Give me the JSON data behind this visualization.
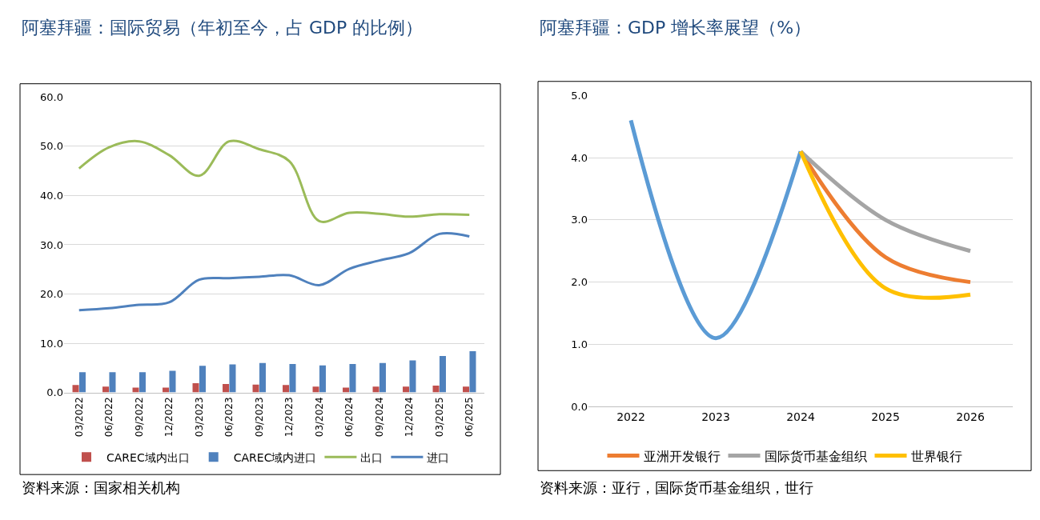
{
  "chart_data": [
    {
      "type": "bar",
      "title": "阿塞拜疆：国际贸易（年初至今，占 GDP 的比例）",
      "categories": [
        "03/2022",
        "06/2022",
        "09/2022",
        "12/2022",
        "03/2023",
        "06/2023",
        "09/2023",
        "12/2023",
        "03/2024",
        "06/2024",
        "09/2024",
        "12/2024",
        "03/2025",
        "06/2025"
      ],
      "series": [
        {
          "name": "CAREC域内出口",
          "color": "#c0504d",
          "values": [
            1.5,
            1.2,
            1.0,
            1.0,
            1.9,
            1.7,
            1.6,
            1.5,
            1.2,
            1.0,
            1.2,
            1.2,
            1.4,
            1.2
          ]
        },
        {
          "name": "CAREC域内进口",
          "color": "#4f81bd",
          "values": [
            4.1,
            4.1,
            4.1,
            4.4,
            5.4,
            5.7,
            6.0,
            5.8,
            5.5,
            5.8,
            6.0,
            6.5,
            7.4,
            8.4
          ]
        },
        {
          "name": "出口",
          "type": "line",
          "color": "#9bbb59",
          "values": [
            45.5,
            49.8,
            51.0,
            48.2,
            44.0,
            51.0,
            49.4,
            47.0,
            34.8,
            36.5,
            36.3,
            35.7,
            36.2,
            36.1
          ]
        },
        {
          "name": "进口",
          "type": "line",
          "color": "#4f81bd",
          "values": [
            16.7,
            17.1,
            17.8,
            18.3,
            22.9,
            23.2,
            23.5,
            23.8,
            21.8,
            25.1,
            26.8,
            28.3,
            32.2,
            31.7
          ]
        }
      ],
      "ylim": [
        0,
        60
      ],
      "yticks": [
        {
          "value": 0,
          "label": "0.0"
        },
        {
          "value": 10,
          "label": "10.0"
        },
        {
          "value": 20,
          "label": "20.0"
        },
        {
          "value": 30,
          "label": "30.0"
        },
        {
          "value": 40,
          "label": "40.0"
        },
        {
          "value": 50,
          "label": "50.0"
        },
        {
          "value": 60,
          "label": "60.0"
        }
      ],
      "grid": "y",
      "legend": "bottom",
      "annotations": [
        "资料来源：国家相关机构"
      ]
    },
    {
      "type": "line",
      "title": "阿塞拜疆：GDP 增长率展望（%）",
      "categories": [
        "2022",
        "2023",
        "2024",
        "2025",
        "2026"
      ],
      "series": [
        {
          "color": "#5b9bd5",
          "values": [
            4.6,
            1.1,
            4.1,
            null,
            null
          ]
        },
        {
          "name": "亚洲开发银行",
          "color": "#ed7d31",
          "values": [
            null,
            null,
            4.1,
            2.4,
            2.0
          ]
        },
        {
          "name": "国际货币基金组织",
          "color": "#a5a5a5",
          "values": [
            null,
            null,
            4.1,
            3.0,
            2.5
          ]
        },
        {
          "name": "世界银行",
          "color": "#ffc000",
          "values": [
            null,
            null,
            4.1,
            1.9,
            1.8
          ]
        }
      ],
      "ylim": [
        0,
        5
      ],
      "yticks": [
        {
          "value": 0,
          "label": "0.0"
        },
        {
          "value": 1,
          "label": "1.0"
        },
        {
          "value": 2,
          "label": "2.0"
        },
        {
          "value": 3,
          "label": "3.0"
        },
        {
          "value": 4,
          "label": "4.0"
        },
        {
          "value": 5,
          "label": "5.0"
        }
      ],
      "grid": "y",
      "legend": "bottom",
      "annotations": [
        "资料来源：亚行，国际货币基金组织，世行"
      ]
    }
  ]
}
